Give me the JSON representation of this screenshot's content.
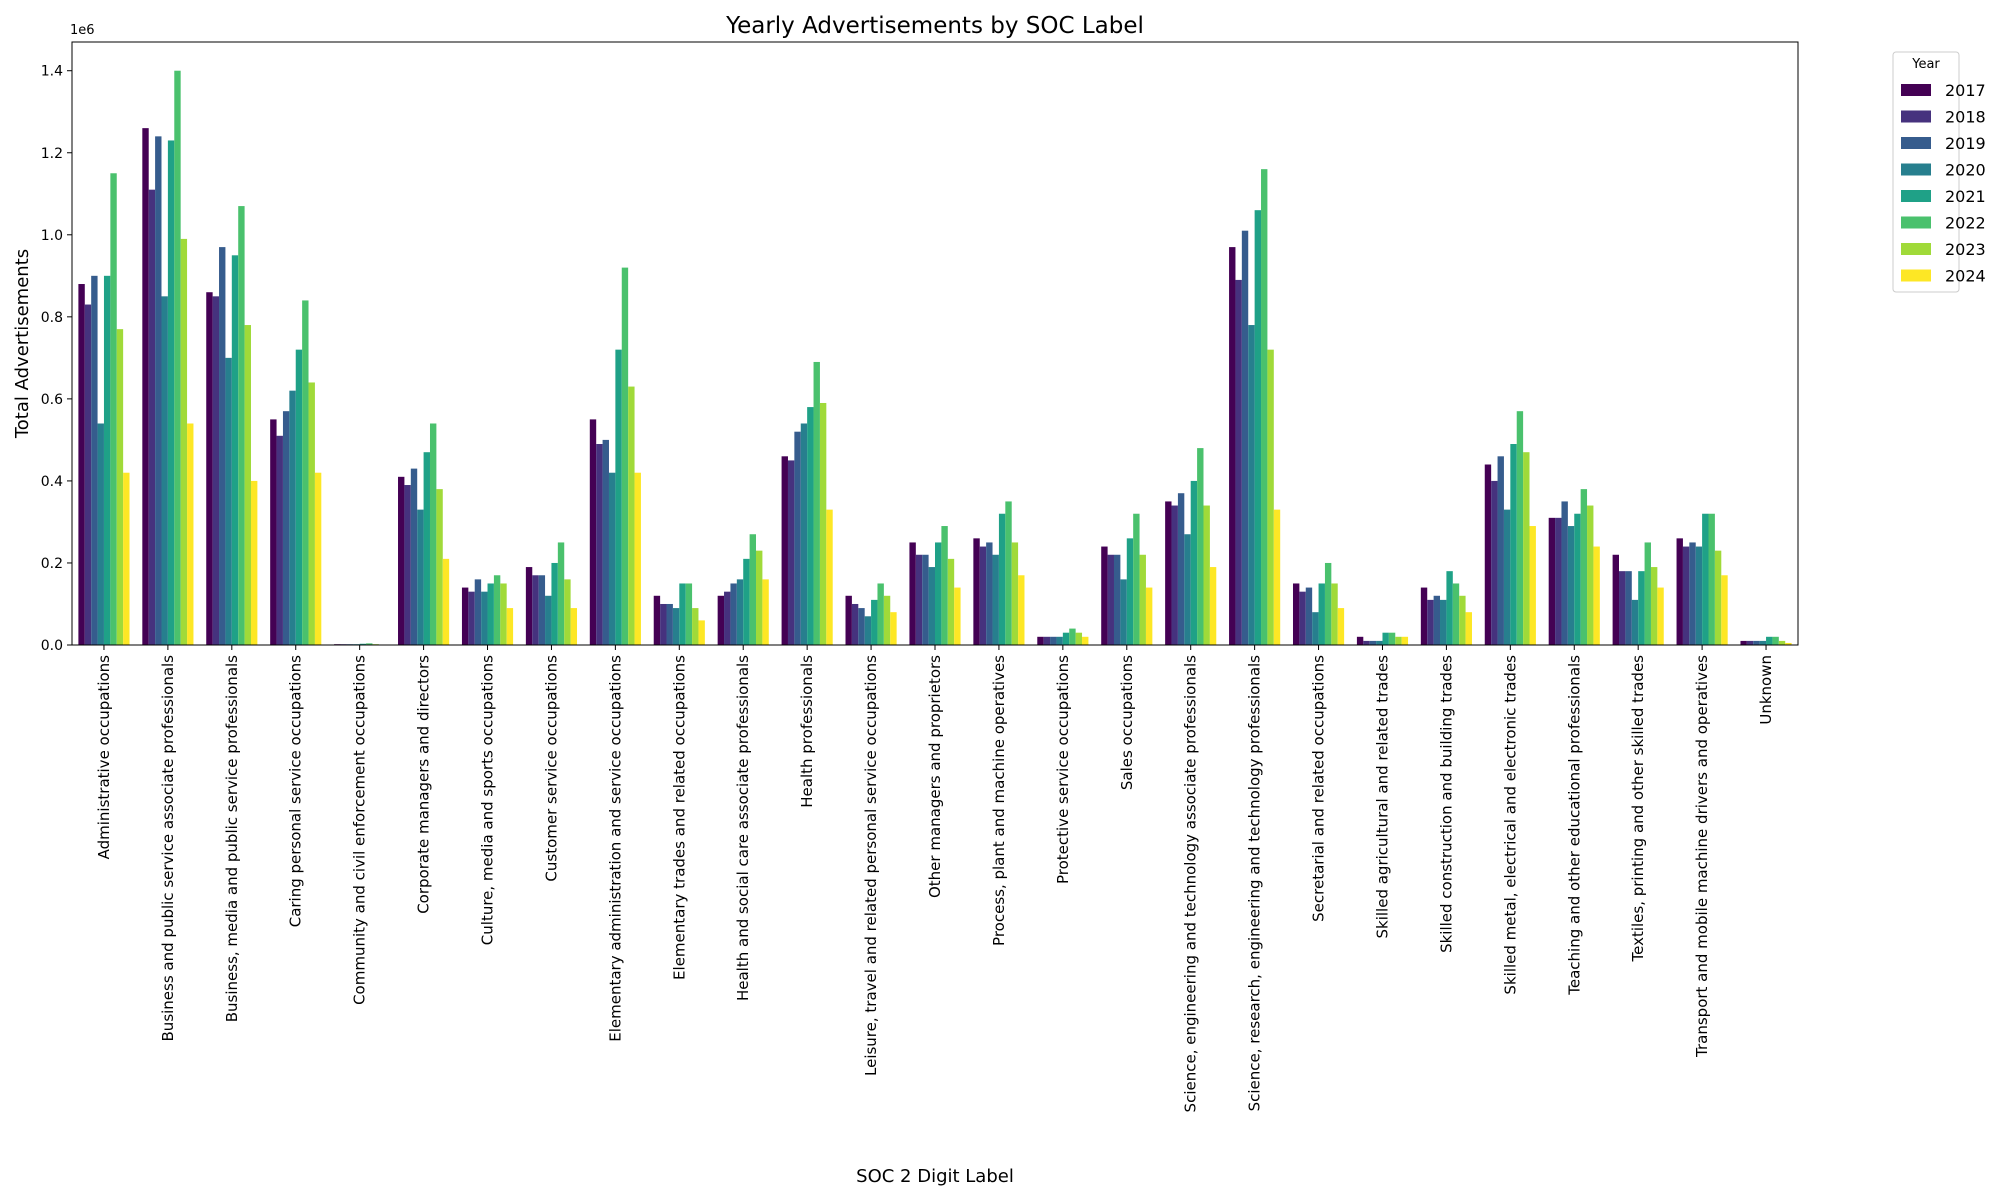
{
  "chart_data": {
    "type": "bar",
    "title": "Yearly Advertisements by SOC Label",
    "xlabel": "SOC 2 Digit Label",
    "ylabel": "Total Advertisements",
    "y_offset_label": "1e6",
    "ylim": [
      0,
      1.47
    ],
    "yticks": [
      "0.0",
      "0.2",
      "0.4",
      "0.6",
      "0.8",
      "1.0",
      "1.2",
      "1.4"
    ],
    "grid": false,
    "legend_title": "Year",
    "legend_position": "outside-top-right",
    "categories": [
      "Administrative occupations",
      "Business and public service associate professionals",
      "Business, media and public service professionals",
      "Caring personal service occupations",
      "Community and civil enforcement occupations",
      "Corporate managers and directors",
      "Culture, media and sports occupations",
      "Customer service occupations",
      "Elementary administration and service occupations",
      "Elementary trades and related occupations",
      "Health and social care associate professionals",
      "Health professionals",
      "Leisure, travel and related personal service occupations",
      "Other managers and proprietors",
      "Process, plant and machine operatives",
      "Protective service occupations",
      "Sales occupations",
      "Science, engineering and technology associate professionals",
      "Science, research, engineering and technology professionals",
      "Secretarial and related occupations",
      "Skilled agricultural and related trades",
      "Skilled construction and building trades",
      "Skilled metal, electrical and electronic trades",
      "Teaching and other educational professionals",
      "Textiles, printing and other skilled trades",
      "Transport and mobile machine drivers and operatives",
      "Unknown"
    ],
    "series": [
      {
        "name": "2017",
        "color": "#440154",
        "values": [
          0.88,
          1.26,
          0.86,
          0.55,
          0.002,
          0.41,
          0.14,
          0.19,
          0.55,
          0.12,
          0.12,
          0.46,
          0.12,
          0.25,
          0.26,
          0.02,
          0.24,
          0.35,
          0.97,
          0.15,
          0.02,
          0.14,
          0.44,
          0.31,
          0.22,
          0.26,
          0.01
        ]
      },
      {
        "name": "2018",
        "color": "#46327e",
        "values": [
          0.83,
          1.11,
          0.85,
          0.51,
          0.002,
          0.39,
          0.13,
          0.17,
          0.49,
          0.1,
          0.13,
          0.45,
          0.1,
          0.22,
          0.24,
          0.02,
          0.22,
          0.34,
          0.89,
          0.13,
          0.01,
          0.11,
          0.4,
          0.31,
          0.18,
          0.24,
          0.01
        ]
      },
      {
        "name": "2019",
        "color": "#365c8d",
        "values": [
          0.9,
          1.24,
          0.97,
          0.57,
          0.002,
          0.43,
          0.16,
          0.17,
          0.5,
          0.1,
          0.15,
          0.52,
          0.09,
          0.22,
          0.25,
          0.02,
          0.22,
          0.37,
          1.01,
          0.14,
          0.01,
          0.12,
          0.46,
          0.35,
          0.18,
          0.25,
          0.01
        ]
      },
      {
        "name": "2020",
        "color": "#277f8e",
        "values": [
          0.54,
          0.85,
          0.7,
          0.62,
          0.002,
          0.33,
          0.13,
          0.12,
          0.42,
          0.09,
          0.16,
          0.54,
          0.07,
          0.19,
          0.22,
          0.02,
          0.16,
          0.27,
          0.78,
          0.08,
          0.01,
          0.11,
          0.33,
          0.29,
          0.11,
          0.24,
          0.01
        ]
      },
      {
        "name": "2021",
        "color": "#1fa187",
        "values": [
          0.9,
          1.23,
          0.95,
          0.72,
          0.003,
          0.47,
          0.15,
          0.2,
          0.72,
          0.15,
          0.21,
          0.58,
          0.11,
          0.25,
          0.32,
          0.03,
          0.26,
          0.4,
          1.06,
          0.15,
          0.03,
          0.18,
          0.49,
          0.32,
          0.18,
          0.32,
          0.02
        ]
      },
      {
        "name": "2022",
        "color": "#4ac16d",
        "values": [
          1.15,
          1.4,
          1.07,
          0.84,
          0.004,
          0.54,
          0.17,
          0.25,
          0.92,
          0.15,
          0.27,
          0.69,
          0.15,
          0.29,
          0.35,
          0.04,
          0.32,
          0.48,
          1.16,
          0.2,
          0.03,
          0.15,
          0.57,
          0.38,
          0.25,
          0.32,
          0.02
        ]
      },
      {
        "name": "2023",
        "color": "#a0da39",
        "values": [
          0.77,
          0.99,
          0.78,
          0.64,
          0.002,
          0.38,
          0.15,
          0.16,
          0.63,
          0.09,
          0.23,
          0.59,
          0.12,
          0.21,
          0.25,
          0.03,
          0.22,
          0.34,
          0.72,
          0.15,
          0.02,
          0.12,
          0.47,
          0.34,
          0.19,
          0.23,
          0.01
        ]
      },
      {
        "name": "2024",
        "color": "#fde725",
        "values": [
          0.42,
          0.54,
          0.4,
          0.42,
          0.001,
          0.21,
          0.09,
          0.09,
          0.42,
          0.06,
          0.16,
          0.33,
          0.08,
          0.14,
          0.17,
          0.02,
          0.14,
          0.19,
          0.33,
          0.09,
          0.02,
          0.08,
          0.29,
          0.24,
          0.14,
          0.17,
          0.005
        ]
      }
    ]
  }
}
